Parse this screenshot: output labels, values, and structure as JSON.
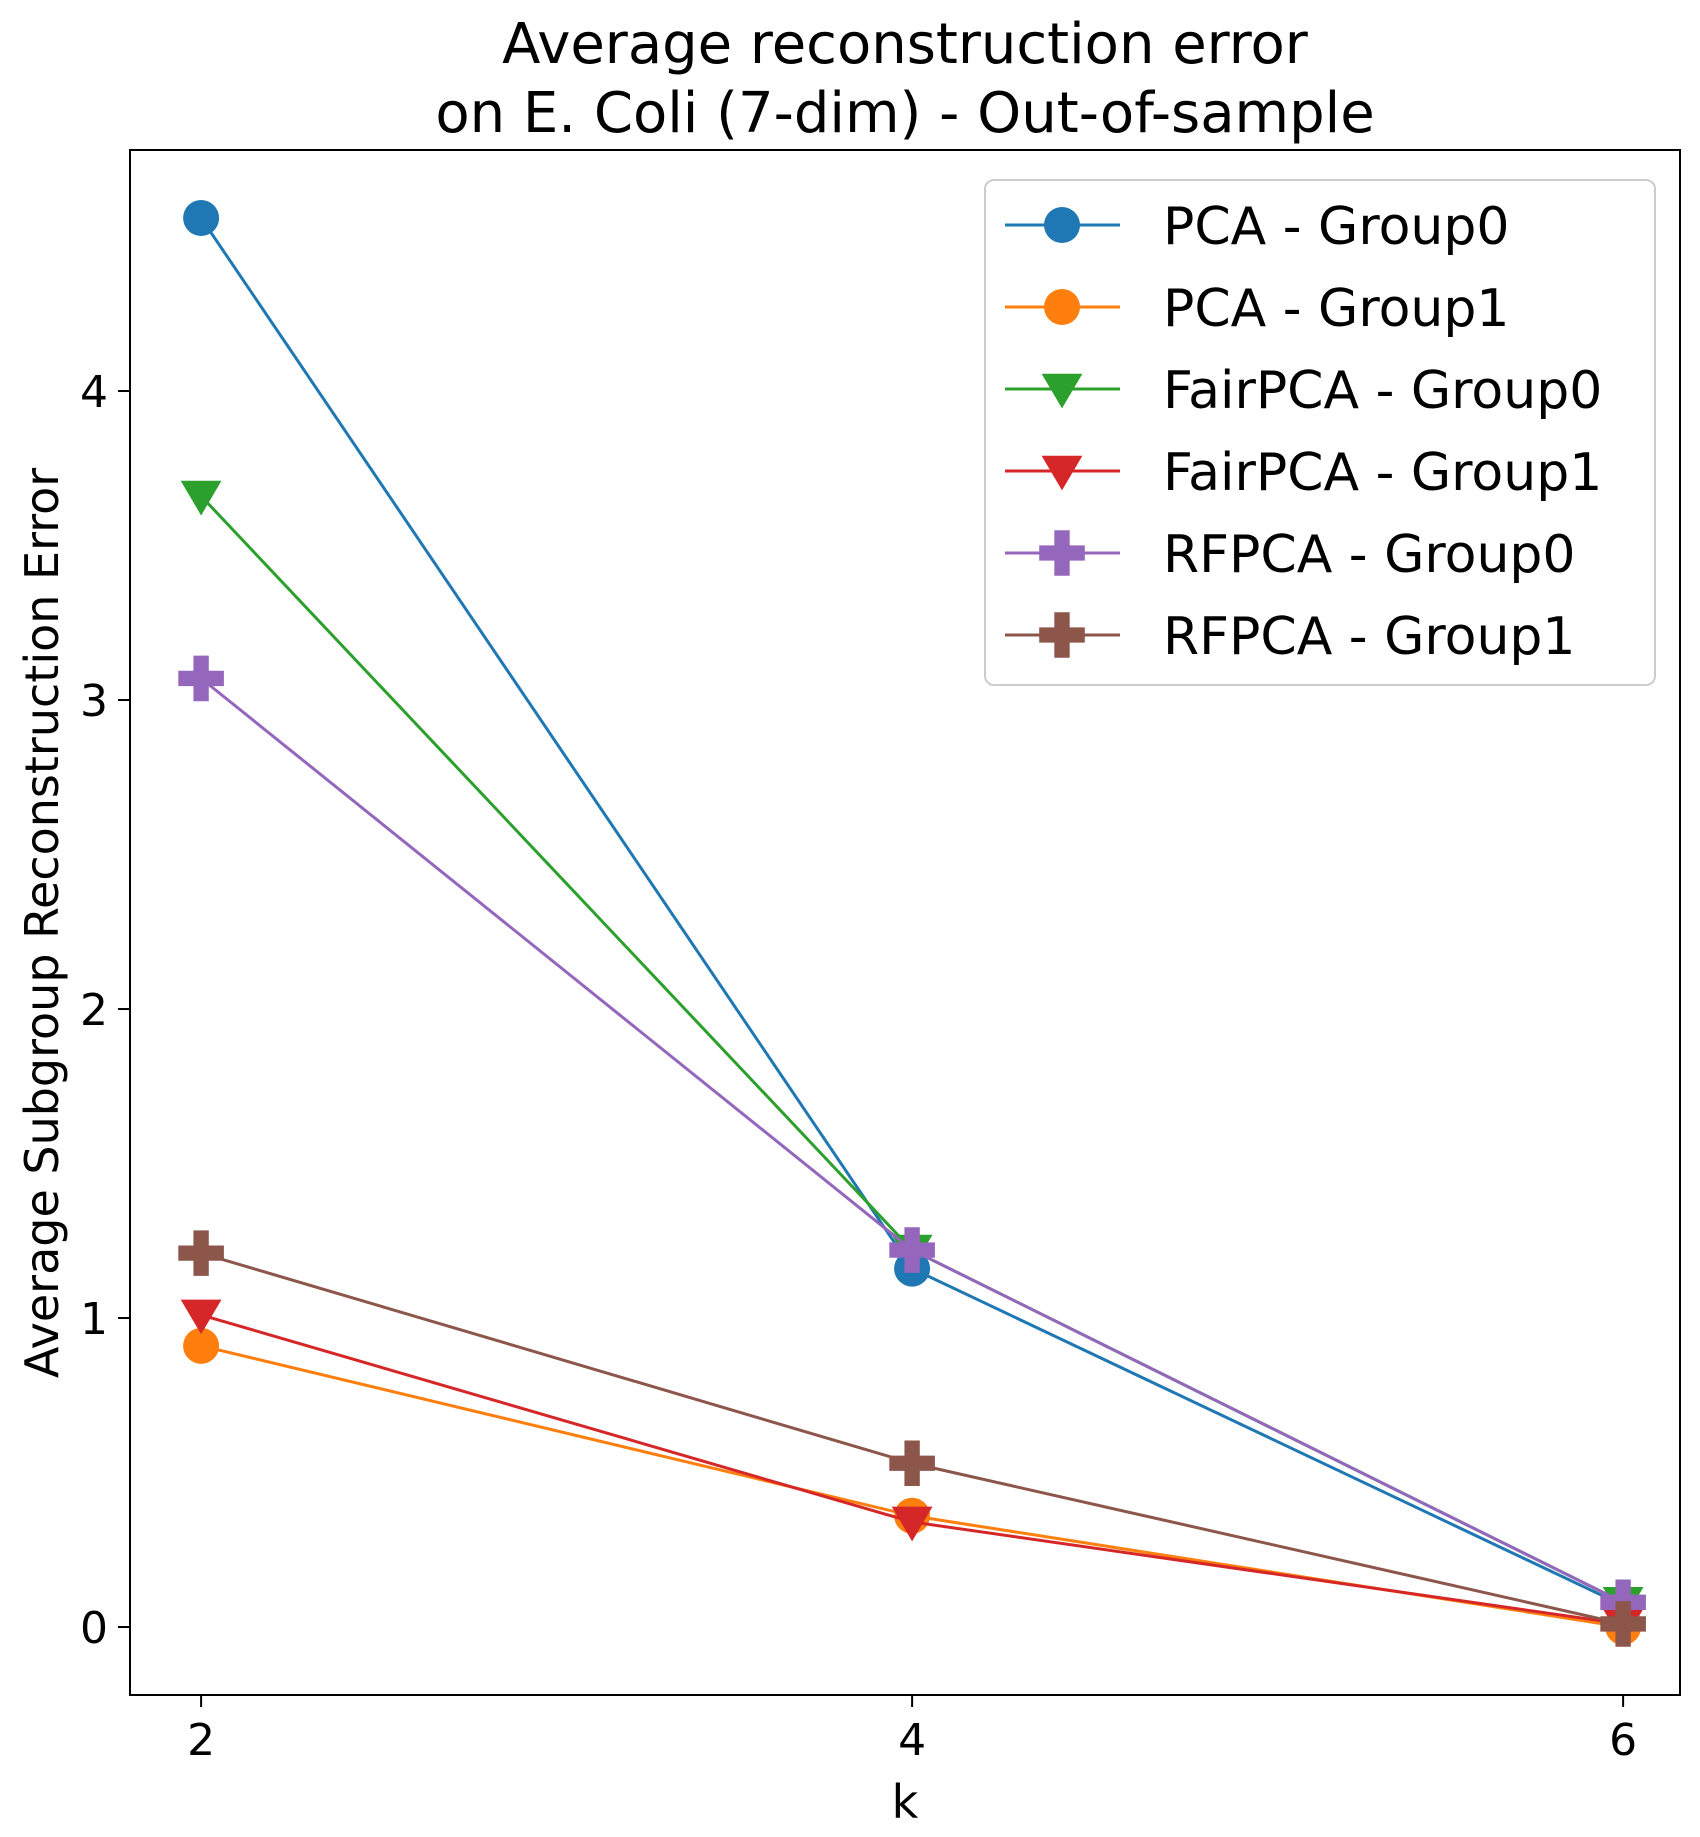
{
  "chart_data": {
    "type": "line",
    "title": [
      "Average reconstruction error",
      "on E. Coli (7-dim) - Out-of-sample"
    ],
    "xlabel": "k",
    "ylabel": "Average Subgroup Reconstruction Error",
    "x": [
      2,
      4,
      6
    ],
    "xlim": [
      1.8,
      6.16
    ],
    "ylim": [
      -0.22,
      4.78
    ],
    "xticks": [
      2,
      4,
      6
    ],
    "yticks": [
      0,
      1,
      2,
      3,
      4
    ],
    "grid": false,
    "legend_position": "upper-right",
    "series": [
      {
        "name": "PCA - Group0",
        "color": "#1f77b4",
        "marker": "circle",
        "values": [
          4.56,
          1.16,
          0.07
        ]
      },
      {
        "name": "PCA - Group1",
        "color": "#ff7f0e",
        "marker": "circle",
        "values": [
          0.91,
          0.36,
          0.0
        ]
      },
      {
        "name": "FairPCA - Group0",
        "color": "#2ca02c",
        "marker": "triangle-down",
        "values": [
          3.66,
          1.22,
          0.08
        ]
      },
      {
        "name": "FairPCA - Group1",
        "color": "#d62728",
        "marker": "triangle-down",
        "values": [
          1.01,
          0.34,
          0.01
        ]
      },
      {
        "name": "RFPCA - Group0",
        "color": "#9467bd",
        "marker": "plus",
        "values": [
          3.07,
          1.22,
          0.08
        ]
      },
      {
        "name": "RFPCA - Group1",
        "color": "#8c564b",
        "marker": "plus",
        "values": [
          1.21,
          0.53,
          0.01
        ]
      }
    ]
  }
}
